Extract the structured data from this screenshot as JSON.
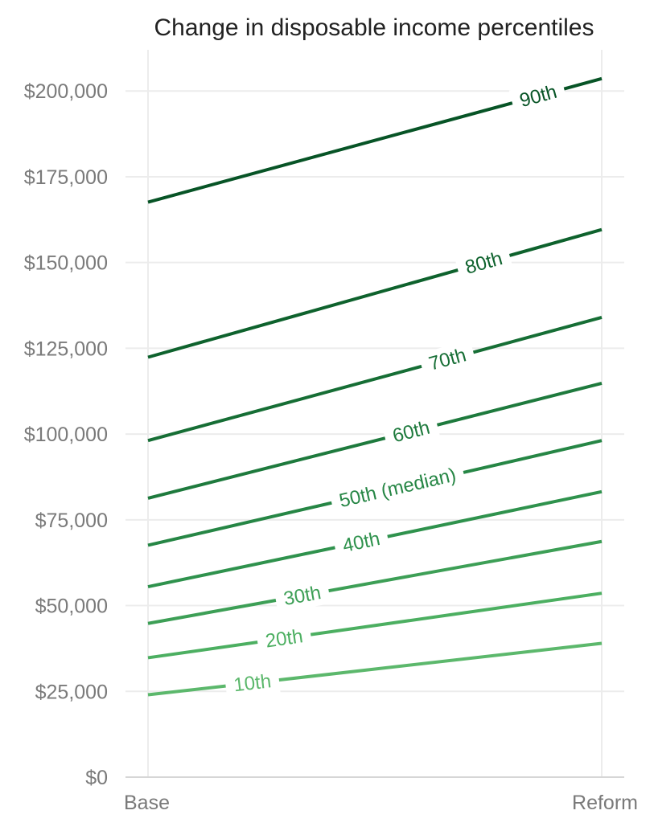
{
  "chart_data": {
    "type": "line",
    "title": "Change in disposable income percentiles",
    "xlabel": "",
    "ylabel": "",
    "categories": [
      "Base",
      "Reform"
    ],
    "ylim": [
      0,
      212000
    ],
    "yticks": [
      0,
      25000,
      50000,
      75000,
      100000,
      125000,
      150000,
      175000,
      200000
    ],
    "ytick_labels": [
      "$0",
      "$25,000",
      "$50,000",
      "$75,000",
      "$100,000",
      "$125,000",
      "$150,000",
      "$175,000",
      "$200,000"
    ],
    "grid": true,
    "legend": "none",
    "series": [
      {
        "name": "10th",
        "values": [
          24000,
          39000
        ],
        "color": "#5cb86c"
      },
      {
        "name": "20th",
        "values": [
          34800,
          53600
        ],
        "color": "#4caf61"
      },
      {
        "name": "30th",
        "values": [
          44800,
          68700
        ],
        "color": "#3d9f56"
      },
      {
        "name": "40th",
        "values": [
          55500,
          83200
        ],
        "color": "#2f924d"
      },
      {
        "name": "50th (median)",
        "values": [
          67600,
          98100
        ],
        "color": "#268645"
      },
      {
        "name": "60th",
        "values": [
          81300,
          114800
        ],
        "color": "#1e7a3d"
      },
      {
        "name": "70th",
        "values": [
          98100,
          134000
        ],
        "color": "#166e35"
      },
      {
        "name": "80th",
        "values": [
          122400,
          159600
        ],
        "color": "#0e622d"
      },
      {
        "name": "90th",
        "values": [
          167600,
          203600
        ],
        "color": "#075426"
      }
    ]
  }
}
